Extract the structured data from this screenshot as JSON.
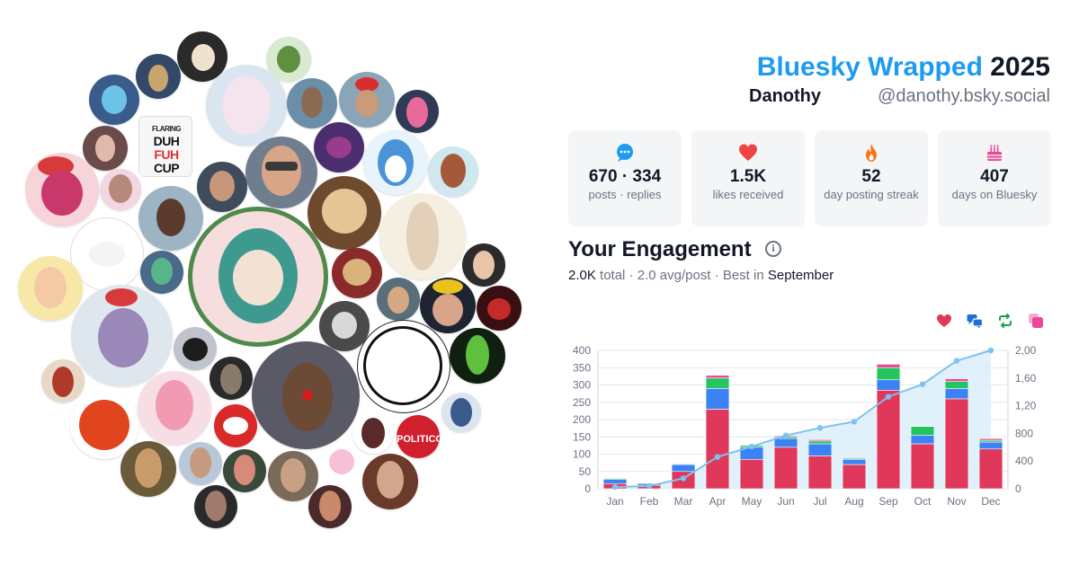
{
  "header": {
    "brand": "Bluesky Wrapped",
    "year": "2025",
    "display_name": "Danothy",
    "handle": "@danothy.bsky.social"
  },
  "stats": [
    {
      "icon": "speech-bubble-icon",
      "value": "670 · 334",
      "label": "posts · replies",
      "color": "#1d9bf0"
    },
    {
      "icon": "heart-icon",
      "value": "1.5K",
      "label": "likes received",
      "color": "#ef4444"
    },
    {
      "icon": "flame-icon",
      "value": "52",
      "label": "day posting streak",
      "color": "#f97316"
    },
    {
      "icon": "cake-icon",
      "value": "407",
      "label": "days on Bluesky",
      "color": "#ec4899"
    }
  ],
  "engagement": {
    "title": "Your Engagement",
    "total": "2.0K",
    "total_suffix": "total",
    "avg": "2.0 avg/post",
    "best_prefix": "Best in",
    "best_month": "September"
  },
  "legend": [
    {
      "icon": "heart-icon",
      "color": "#e0385a"
    },
    {
      "icon": "reply-bubbles-icon",
      "color": "#1d6fd8"
    },
    {
      "icon": "repost-icon",
      "color": "#16a34a"
    },
    {
      "icon": "quote-icon",
      "color": "#ec4899"
    }
  ],
  "chart_data": {
    "type": "bar",
    "categories": [
      "Jan",
      "Feb",
      "Mar",
      "Apr",
      "May",
      "Jun",
      "Jul",
      "Aug",
      "Sep",
      "Oct",
      "Nov",
      "Dec"
    ],
    "series": [
      {
        "key": "likes",
        "values": [
          15,
          10,
          50,
          230,
          85,
          120,
          95,
          70,
          285,
          130,
          260,
          115
        ],
        "color": "#e0385a"
      },
      {
        "key": "replies",
        "values": [
          12,
          5,
          20,
          60,
          35,
          25,
          35,
          15,
          30,
          25,
          30,
          20
        ],
        "color": "#3b82f6"
      },
      {
        "key": "reposts",
        "values": [
          3,
          1,
          2,
          30,
          5,
          5,
          8,
          3,
          35,
          25,
          20,
          5
        ],
        "color": "#22c55e"
      },
      {
        "key": "quotes",
        "values": [
          1,
          1,
          1,
          8,
          2,
          3,
          4,
          2,
          10,
          1,
          8,
          5
        ],
        "color": "#ec4899"
      }
    ],
    "cumulative": {
      "values": [
        25,
        40,
        150,
        460,
        610,
        770,
        880,
        970,
        1330,
        1510,
        1850,
        2000
      ],
      "color": "#7cc3ef"
    },
    "ylim": [
      0,
      400
    ],
    "yticks": [
      "400",
      "350",
      "300",
      "250",
      "200",
      "150",
      "100",
      "50",
      "0"
    ],
    "y2lim": [
      0,
      2000
    ],
    "y2ticks": [
      "2,000",
      "1,600",
      "1,200",
      "800",
      "400",
      "0"
    ],
    "grid": true
  }
}
